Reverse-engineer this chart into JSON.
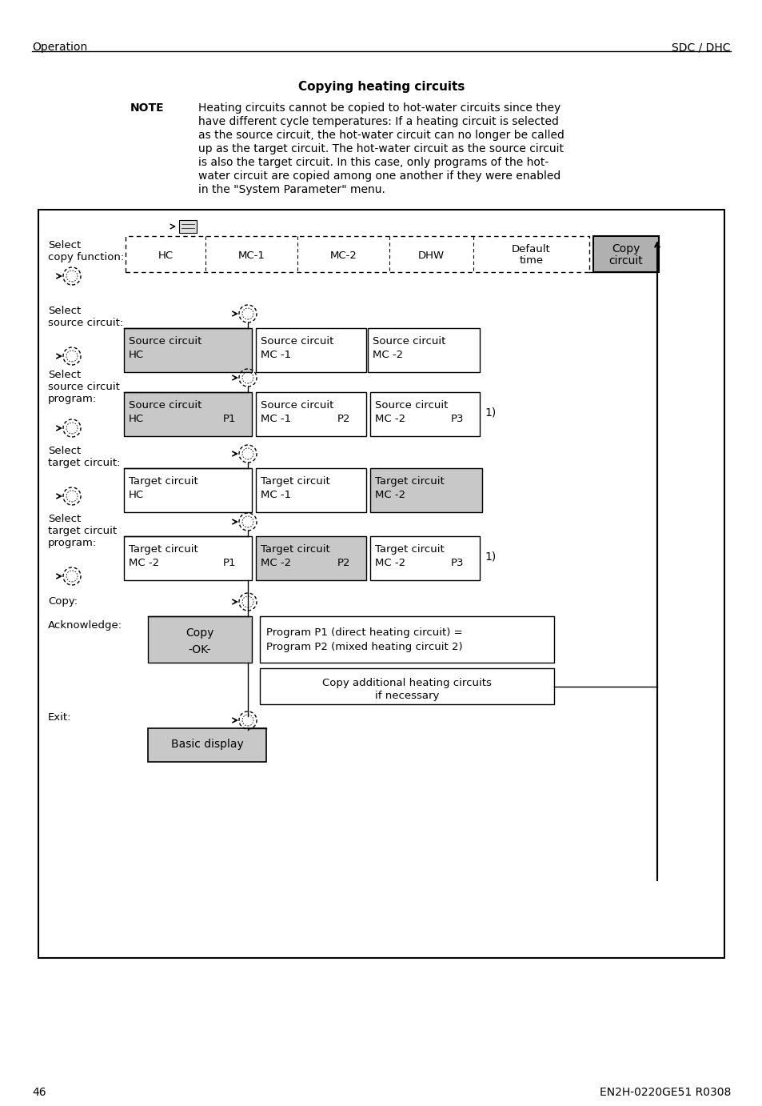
{
  "page_title_left": "Operation",
  "page_title_right": "SDC / DHC",
  "section_title": "Copying heating circuits",
  "note_label": "NOTE",
  "note_text_lines": [
    "Heating circuits cannot be copied to hot-water circuits since they",
    "have different cycle temperatures: If a heating circuit is selected",
    "as the source circuit, the hot-water circuit can no longer be called",
    "up as the target circuit. The hot-water circuit as the source circuit",
    "is also the target circuit. In this case, only programs of the hot-",
    "water circuit are copied among one another if they were enabled",
    "in the \"System Parameter\" menu."
  ],
  "page_number": "46",
  "doc_number": "EN2H-0220GE51 R0308",
  "bg_color": "#ffffff",
  "gray_light": "#c8c8c8",
  "gray_dark": "#b0b0b0"
}
